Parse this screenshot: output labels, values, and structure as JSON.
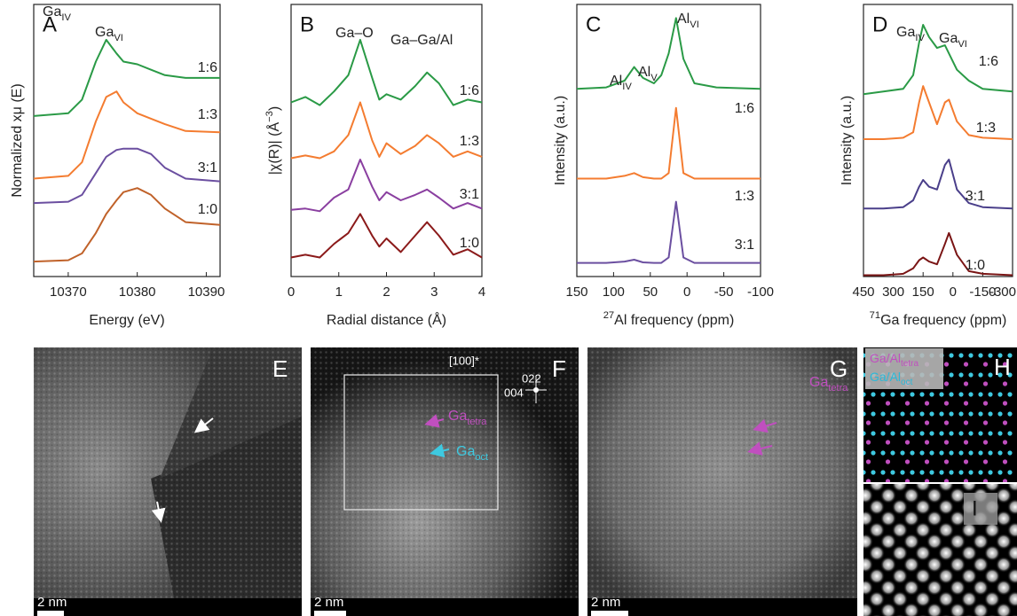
{
  "chart_data": [
    {
      "type": "line",
      "label": "A",
      "xlabel": "Energy (eV)",
      "ylabel": "Normalized xμ (E)",
      "xlim": [
        10365,
        10392
      ],
      "xticks": [
        10370,
        10380,
        10390
      ],
      "ylim": [
        0,
        10
      ],
      "x": [
        10365,
        10370,
        10372,
        10374,
        10375.5,
        10377,
        10378,
        10380,
        10382,
        10384,
        10387,
        10392
      ],
      "series": [
        {
          "name": "1:6",
          "color": "#2a9a46",
          "values": [
            5.9,
            6.0,
            6.5,
            7.9,
            8.7,
            8.2,
            7.9,
            7.8,
            7.6,
            7.4,
            7.3,
            7.3
          ]
        },
        {
          "name": "1:3",
          "color": "#f47c30",
          "values": [
            3.6,
            3.7,
            4.2,
            5.7,
            6.6,
            6.8,
            6.4,
            6.0,
            5.8,
            5.6,
            5.35,
            5.3
          ]
        },
        {
          "name": "3:1",
          "color": "#6b4fa0",
          "values": [
            2.7,
            2.75,
            3.0,
            3.8,
            4.4,
            4.65,
            4.7,
            4.7,
            4.5,
            4.0,
            3.6,
            3.5
          ]
        },
        {
          "name": "1:0",
          "color": "#c0622a",
          "values": [
            0.55,
            0.6,
            0.85,
            1.6,
            2.3,
            2.8,
            3.1,
            3.25,
            3.0,
            2.5,
            2.0,
            1.9
          ]
        }
      ],
      "annotations": [
        {
          "text": "Ga",
          "sub": "IV"
        },
        {
          "text": "Ga",
          "sub": "VI"
        }
      ]
    },
    {
      "type": "line",
      "label": "B",
      "xlabel": "Radial distance (Å)",
      "ylabel": {
        "text": "|χ(R)| (Å",
        "sup": "−3",
        "end": ")"
      },
      "xlim": [
        0,
        4
      ],
      "xticks": [
        0,
        1,
        2,
        3,
        4
      ],
      "ylim": [
        0,
        10
      ],
      "x": [
        0,
        0.3,
        0.6,
        0.9,
        1.2,
        1.45,
        1.7,
        1.85,
        2.0,
        2.3,
        2.6,
        2.85,
        3.1,
        3.4,
        3.7,
        4.0
      ],
      "series": [
        {
          "name": "1:6",
          "color": "#2a9a46",
          "values": [
            6.4,
            6.6,
            6.3,
            6.8,
            7.4,
            8.7,
            7.3,
            6.5,
            6.7,
            6.5,
            7.0,
            7.5,
            7.1,
            6.3,
            6.5,
            6.4
          ]
        },
        {
          "name": "1:3",
          "color": "#f47c30",
          "values": [
            4.35,
            4.45,
            4.35,
            4.6,
            5.2,
            6.4,
            5.0,
            4.4,
            4.9,
            4.5,
            4.8,
            5.2,
            4.9,
            4.4,
            4.6,
            4.4
          ]
        },
        {
          "name": "3:1",
          "color": "#8a3fa0",
          "values": [
            2.45,
            2.5,
            2.4,
            2.9,
            3.2,
            4.3,
            3.3,
            2.8,
            3.1,
            2.8,
            3.0,
            3.2,
            2.9,
            2.5,
            2.7,
            2.5
          ]
        },
        {
          "name": "1:0",
          "color": "#8b1a1a",
          "values": [
            0.7,
            0.8,
            0.7,
            1.2,
            1.6,
            2.3,
            1.5,
            1.1,
            1.4,
            0.9,
            1.5,
            2.0,
            1.5,
            0.8,
            1.0,
            0.7
          ]
        }
      ],
      "annotations": [
        "Ga–O",
        "Ga–Ga/Al"
      ]
    },
    {
      "type": "line",
      "label": "C",
      "xlabel": {
        "sup_pre": "27",
        "text": "Al frequency (ppm)"
      },
      "ylabel": "Intensity (a.u.)",
      "xlim": [
        150,
        -100
      ],
      "xticks": [
        150,
        100,
        50,
        0,
        -50,
        -100
      ],
      "ylim": [
        0,
        10
      ],
      "x": [
        150,
        110,
        85,
        72,
        60,
        45,
        35,
        25,
        15,
        5,
        -10,
        -40,
        -100
      ],
      "series": [
        {
          "name": "1:6",
          "color": "#2a9a46",
          "values": [
            6.9,
            6.95,
            7.2,
            7.7,
            7.3,
            7.1,
            7.4,
            8.2,
            9.5,
            8.0,
            7.1,
            6.95,
            6.9
          ]
        },
        {
          "name": "1:3",
          "color": "#f47c30",
          "values": [
            3.6,
            3.6,
            3.7,
            3.8,
            3.65,
            3.6,
            3.6,
            3.8,
            6.2,
            3.8,
            3.6,
            3.6,
            3.6
          ]
        },
        {
          "name": "3:1",
          "color": "#6b4fa0",
          "values": [
            0.5,
            0.5,
            0.55,
            0.62,
            0.52,
            0.5,
            0.5,
            0.7,
            2.75,
            0.7,
            0.5,
            0.5,
            0.5
          ]
        }
      ],
      "annotations": [
        {
          "text": "Al",
          "sub": "IV"
        },
        {
          "text": "Al",
          "sub": "V"
        },
        {
          "text": "Al",
          "sub": "VI"
        }
      ]
    },
    {
      "type": "line",
      "label": "D",
      "xlabel": {
        "sup_pre": "71",
        "text": "Ga frequency (ppm)"
      },
      "ylabel": "Intensity (a.u.)",
      "xlim": [
        450,
        -300
      ],
      "xticks": [
        450,
        300,
        150,
        0,
        -150,
        -300
      ],
      "ylim": [
        0,
        10
      ],
      "x": [
        450,
        350,
        250,
        200,
        170,
        150,
        120,
        80,
        40,
        20,
        -20,
        -80,
        -150,
        -300
      ],
      "series": [
        {
          "name": "1:6",
          "color": "#2a9a46",
          "values": [
            6.7,
            6.8,
            6.9,
            7.4,
            8.6,
            9.25,
            8.8,
            8.4,
            8.5,
            8.2,
            7.6,
            7.2,
            6.9,
            6.8
          ]
        },
        {
          "name": "1:3",
          "color": "#f47c30",
          "values": [
            5.05,
            5.05,
            5.1,
            5.3,
            6.4,
            7.0,
            6.4,
            5.6,
            6.4,
            6.5,
            5.7,
            5.2,
            5.1,
            5.05
          ]
        },
        {
          "name": "3:1",
          "color": "#4a3f8a",
          "values": [
            2.5,
            2.5,
            2.55,
            2.8,
            3.3,
            3.55,
            3.3,
            3.2,
            4.1,
            4.3,
            3.2,
            2.7,
            2.55,
            2.5
          ]
        },
        {
          "name": "1:0",
          "color": "#7a1515",
          "values": [
            0.05,
            0.05,
            0.1,
            0.3,
            0.6,
            0.7,
            0.55,
            0.45,
            1.2,
            1.6,
            0.8,
            0.2,
            0.1,
            0.05
          ]
        }
      ],
      "annotations": [
        {
          "text": "Ga",
          "sub": "IV"
        },
        {
          "text": "Ga",
          "sub": "VI"
        }
      ]
    }
  ],
  "images": {
    "E": {
      "label": "E",
      "scale": "2 nm"
    },
    "F": {
      "label": "F",
      "scale": "2 nm",
      "zone": "[100]*",
      "spots": [
        "022",
        "004"
      ],
      "ga_tetra": {
        "text": "Ga",
        "sub": "tetra"
      },
      "ga_oct": {
        "text": "Ga",
        "sub": "oct"
      }
    },
    "G": {
      "label": "G",
      "scale": "2 nm",
      "ga_tetra": {
        "text": "Ga",
        "sub": "tetra"
      }
    },
    "H": {
      "label": "H",
      "legend": [
        {
          "text": "Ga/Al",
          "sub": "tetra"
        },
        {
          "text": "Ga/Al",
          "sub": "oct"
        }
      ]
    },
    "I": {
      "label": "I"
    }
  }
}
